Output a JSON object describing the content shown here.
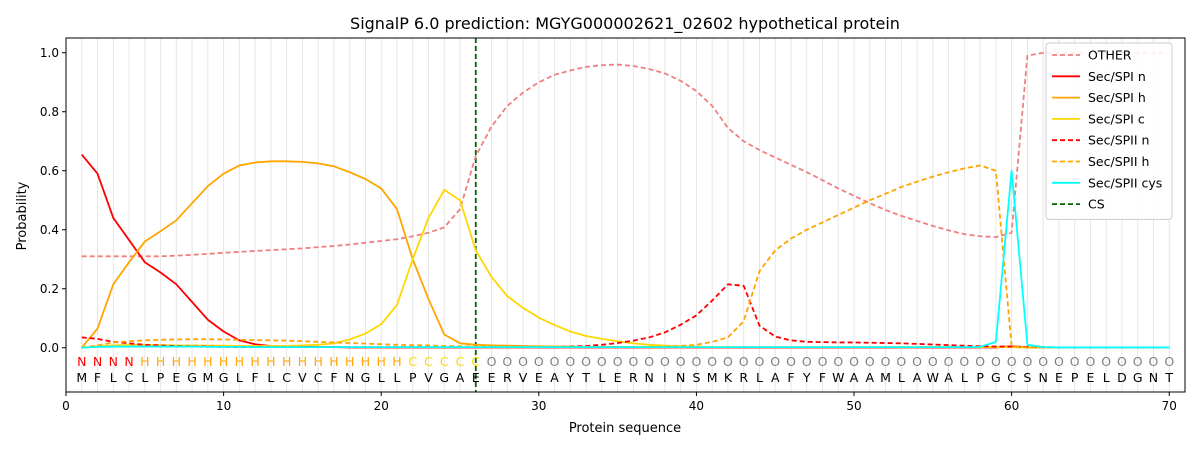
{
  "chart_data": {
    "type": "line",
    "title": "SignalP 6.0 prediction: MGYG000002621_02602 hypothetical protein",
    "xlabel": "Protein sequence",
    "ylabel": "Probability",
    "xlim": [
      0,
      71
    ],
    "ylim": [
      -0.15,
      1.05
    ],
    "x_ticks": [
      0,
      10,
      20,
      30,
      40,
      50,
      60,
      70
    ],
    "y_ticks": [
      0.0,
      0.2,
      0.4,
      0.6,
      0.8,
      1.0
    ],
    "vertical_grid": "light grey line at each residue position 1-70",
    "legend_position": "top-right",
    "cleavage_site": 26,
    "sequence": [
      "M",
      "F",
      "L",
      "C",
      "L",
      "P",
      "E",
      "G",
      "M",
      "G",
      "L",
      "F",
      "L",
      "C",
      "V",
      "C",
      "F",
      "N",
      "G",
      "L",
      "L",
      "P",
      "V",
      "G",
      "A",
      "E",
      "E",
      "R",
      "V",
      "E",
      "A",
      "Y",
      "T",
      "L",
      "E",
      "R",
      "N",
      "I",
      "N",
      "S",
      "M",
      "K",
      "R",
      "L",
      "A",
      "F",
      "Y",
      "F",
      "W",
      "A",
      "A",
      "M",
      "L",
      "A",
      "W",
      "A",
      "L",
      "P",
      "G",
      "C",
      "S",
      "N",
      "E",
      "P",
      "E",
      "L",
      "D",
      "G",
      "N",
      "T"
    ],
    "region_labels": [
      "N",
      "N",
      "N",
      "N",
      "H",
      "H",
      "H",
      "H",
      "H",
      "H",
      "H",
      "H",
      "H",
      "H",
      "H",
      "H",
      "H",
      "H",
      "H",
      "H",
      "H",
      "C",
      "C",
      "C",
      "C",
      "C",
      "O",
      "O",
      "O",
      "O",
      "O",
      "O",
      "O",
      "O",
      "O",
      "O",
      "O",
      "O",
      "O",
      "O",
      "O",
      "O",
      "O",
      "O",
      "O",
      "O",
      "O",
      "O",
      "O",
      "O",
      "O",
      "O",
      "O",
      "O",
      "O",
      "O",
      "O",
      "O",
      "O",
      "O",
      "O",
      "O",
      "O",
      "O",
      "O",
      "O",
      "O",
      "O",
      "O",
      "O"
    ],
    "region_colors": {
      "N": "#ff0000",
      "H": "#ffa500",
      "C": "#ffd700",
      "O": "#808080"
    },
    "series": [
      {
        "name": "OTHER",
        "color": "#f08080",
        "dash": true,
        "values": [
          0.31,
          0.31,
          0.31,
          0.31,
          0.31,
          0.31,
          0.312,
          0.315,
          0.318,
          0.322,
          0.325,
          0.328,
          0.331,
          0.334,
          0.337,
          0.341,
          0.345,
          0.35,
          0.356,
          0.362,
          0.368,
          0.378,
          0.39,
          0.408,
          0.47,
          0.65,
          0.75,
          0.82,
          0.865,
          0.9,
          0.925,
          0.94,
          0.952,
          0.958,
          0.96,
          0.955,
          0.945,
          0.93,
          0.905,
          0.87,
          0.82,
          0.745,
          0.7,
          0.67,
          0.645,
          0.62,
          0.595,
          0.568,
          0.54,
          0.515,
          0.49,
          0.467,
          0.447,
          0.43,
          0.413,
          0.398,
          0.385,
          0.378,
          0.375,
          0.39,
          0.99,
          1.0,
          1.0,
          1.0,
          1.0,
          1.0,
          1.0,
          1.0,
          1.0,
          1.0
        ]
      },
      {
        "name": "Sec/SPI n",
        "color": "#ff0000",
        "dash": false,
        "values": [
          0.655,
          0.59,
          0.44,
          0.365,
          0.29,
          0.255,
          0.215,
          0.155,
          0.095,
          0.055,
          0.025,
          0.012,
          0.006,
          0.004,
          0.003,
          0.002,
          0.002,
          0.001,
          0.001,
          0.001,
          0.001,
          0.001,
          0.001,
          0.001,
          0.001,
          0.001,
          0.001,
          0.001,
          0.001,
          0.001,
          0.001,
          0.001,
          0.001,
          0.001,
          0.001,
          0.001,
          0.001,
          0.001,
          0.001,
          0.001,
          0.001,
          0.001,
          0.001,
          0.001,
          0.001,
          0.001,
          0.001,
          0.001,
          0.001,
          0.001,
          0.001,
          0.001,
          0.001,
          0.001,
          0.001,
          0.001,
          0.001,
          0.001,
          0.001,
          0.005,
          0.001,
          0.001,
          0.001,
          0.001,
          0.001,
          0.001,
          0.001,
          0.001,
          0.001,
          0.001
        ]
      },
      {
        "name": "Sec/SPI h",
        "color": "#ffa500",
        "dash": false,
        "values": [
          0.0,
          0.065,
          0.215,
          0.29,
          0.36,
          0.395,
          0.432,
          0.49,
          0.548,
          0.59,
          0.618,
          0.628,
          0.632,
          0.632,
          0.63,
          0.625,
          0.615,
          0.595,
          0.572,
          0.54,
          0.47,
          0.3,
          0.165,
          0.045,
          0.015,
          0.01,
          0.008,
          0.007,
          0.006,
          0.005,
          0.004,
          0.004,
          0.003,
          0.003,
          0.003,
          0.002,
          0.002,
          0.002,
          0.002,
          0.002,
          0.002,
          0.002,
          0.002,
          0.002,
          0.002,
          0.002,
          0.002,
          0.002,
          0.002,
          0.002,
          0.002,
          0.002,
          0.002,
          0.002,
          0.002,
          0.002,
          0.002,
          0.002,
          0.002,
          0.002,
          0.001,
          0.001,
          0.001,
          0.001,
          0.001,
          0.001,
          0.001,
          0.001,
          0.001,
          0.001
        ]
      },
      {
        "name": "Sec/SPI c",
        "color": "#ffd700",
        "dash": false,
        "values": [
          0.0,
          0.005,
          0.008,
          0.01,
          0.01,
          0.009,
          0.008,
          0.008,
          0.007,
          0.007,
          0.006,
          0.006,
          0.006,
          0.006,
          0.008,
          0.01,
          0.015,
          0.028,
          0.048,
          0.08,
          0.145,
          0.3,
          0.44,
          0.535,
          0.5,
          0.33,
          0.24,
          0.175,
          0.135,
          0.102,
          0.077,
          0.055,
          0.04,
          0.03,
          0.022,
          0.015,
          0.01,
          0.007,
          0.005,
          0.004,
          0.003,
          0.003,
          0.002,
          0.002,
          0.002,
          0.002,
          0.002,
          0.002,
          0.002,
          0.002,
          0.002,
          0.002,
          0.002,
          0.002,
          0.002,
          0.002,
          0.002,
          0.002,
          0.002,
          0.002,
          0.001,
          0.001,
          0.001,
          0.001,
          0.001,
          0.001,
          0.001,
          0.001,
          0.001,
          0.001
        ]
      },
      {
        "name": "Sec/SPII n",
        "color": "#ff0000",
        "dash": true,
        "values": [
          0.035,
          0.03,
          0.02,
          0.015,
          0.01,
          0.008,
          0.006,
          0.005,
          0.004,
          0.003,
          0.002,
          0.002,
          0.002,
          0.002,
          0.002,
          0.002,
          0.002,
          0.002,
          0.002,
          0.002,
          0.002,
          0.002,
          0.002,
          0.002,
          0.002,
          0.002,
          0.002,
          0.002,
          0.002,
          0.002,
          0.003,
          0.004,
          0.006,
          0.01,
          0.016,
          0.024,
          0.035,
          0.052,
          0.078,
          0.11,
          0.16,
          0.215,
          0.21,
          0.075,
          0.038,
          0.025,
          0.02,
          0.019,
          0.018,
          0.018,
          0.017,
          0.016,
          0.015,
          0.013,
          0.011,
          0.009,
          0.007,
          0.005,
          0.004,
          0.004,
          0.003,
          0.002,
          0.001,
          0.001,
          0.001,
          0.001,
          0.001,
          0.001,
          0.001,
          0.001
        ]
      },
      {
        "name": "Sec/SPII h",
        "color": "#ffa500",
        "dash": true,
        "values": [
          0.0,
          0.008,
          0.018,
          0.022,
          0.025,
          0.027,
          0.028,
          0.029,
          0.029,
          0.028,
          0.027,
          0.026,
          0.025,
          0.024,
          0.022,
          0.02,
          0.018,
          0.016,
          0.014,
          0.012,
          0.01,
          0.009,
          0.008,
          0.006,
          0.005,
          0.004,
          0.004,
          0.003,
          0.003,
          0.003,
          0.003,
          0.003,
          0.003,
          0.003,
          0.003,
          0.003,
          0.003,
          0.004,
          0.006,
          0.01,
          0.02,
          0.035,
          0.09,
          0.26,
          0.33,
          0.37,
          0.4,
          0.425,
          0.45,
          0.475,
          0.5,
          0.522,
          0.545,
          0.563,
          0.58,
          0.595,
          0.608,
          0.618,
          0.6,
          0.005,
          0.001,
          0.001,
          0.001,
          0.001,
          0.001,
          0.001,
          0.001,
          0.001,
          0.001,
          0.001
        ]
      },
      {
        "name": "Sec/SPII cys",
        "color": "#00ffff",
        "dash": false,
        "values": [
          0.0,
          0.003,
          0.004,
          0.004,
          0.004,
          0.004,
          0.004,
          0.004,
          0.003,
          0.003,
          0.003,
          0.002,
          0.002,
          0.002,
          0.002,
          0.002,
          0.002,
          0.002,
          0.002,
          0.002,
          0.002,
          0.002,
          0.002,
          0.002,
          0.002,
          0.002,
          0.002,
          0.002,
          0.002,
          0.002,
          0.002,
          0.002,
          0.002,
          0.002,
          0.002,
          0.002,
          0.002,
          0.002,
          0.002,
          0.002,
          0.002,
          0.002,
          0.002,
          0.002,
          0.002,
          0.002,
          0.002,
          0.002,
          0.002,
          0.002,
          0.002,
          0.002,
          0.002,
          0.002,
          0.002,
          0.002,
          0.002,
          0.003,
          0.02,
          0.6,
          0.01,
          0.002,
          0.001,
          0.001,
          0.001,
          0.001,
          0.001,
          0.001,
          0.001,
          0.001
        ]
      },
      {
        "name": "CS",
        "color": "#006400",
        "dash": true,
        "vertical_at": 26
      }
    ]
  }
}
